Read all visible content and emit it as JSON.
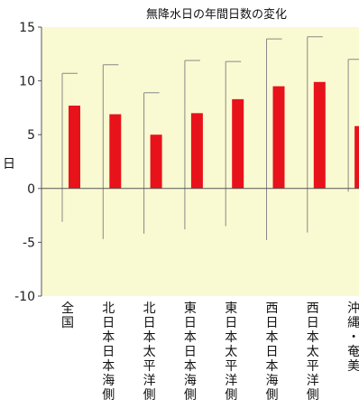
{
  "chart_data": {
    "type": "bar",
    "title": "無降水日の年間日数の変化",
    "ylabel": "日",
    "xlabel": "",
    "ylim": [
      -10,
      15
    ],
    "yticks": [
      15,
      10,
      5,
      0,
      -5,
      -10
    ],
    "grid": false,
    "categories": [
      "全国",
      "北日本日本海側",
      "北日本太平洋側",
      "東日本日本海側",
      "東日本太平洋側",
      "西日本日本海側",
      "西日本太平洋側",
      "沖縄・奄美"
    ],
    "series": [
      {
        "values": [
          7.7,
          6.9,
          5.0,
          7.0,
          8.3,
          9.5,
          9.9,
          5.8
        ],
        "error_high": [
          10.7,
          11.5,
          8.9,
          11.9,
          11.8,
          13.9,
          14.1,
          12.0
        ],
        "error_low": [
          -3.1,
          -4.7,
          -4.2,
          -3.8,
          -3.5,
          -4.8,
          -4.1,
          -0.3
        ]
      }
    ],
    "colors": {
      "bar": "#e8121b",
      "plot_background": "#fafad2",
      "error_bar": "#888888",
      "axis": "#555555"
    }
  }
}
